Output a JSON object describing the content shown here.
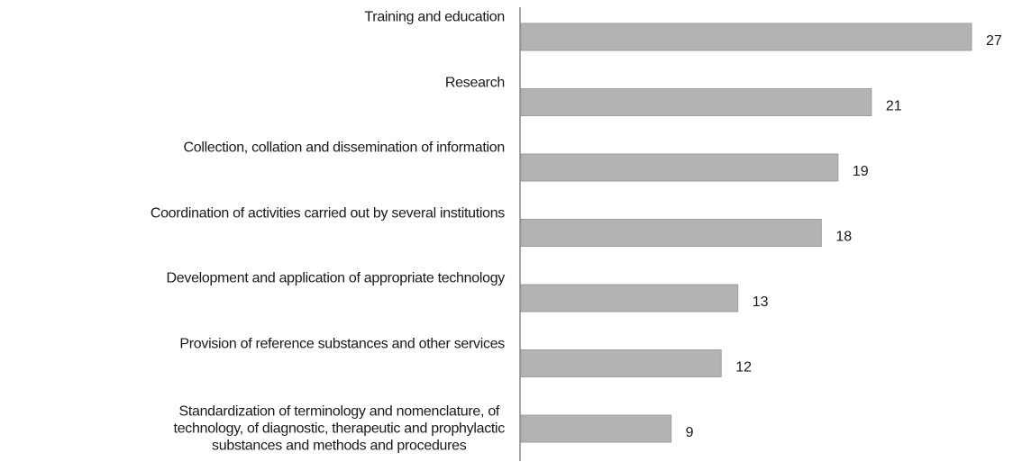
{
  "chart_data": {
    "type": "bar",
    "orientation": "horizontal",
    "categories": [
      "Training and education",
      "Research",
      "Collection, collation and dissemination of information",
      "Coordination of activities carried out by several institutions",
      "Development and application of appropriate technology",
      "Provision of reference substances and other services",
      "Standardization of terminology and nomenclature, of\ntechnology, of diagnostic, therapeutic and prophylactic\nsubstances and methods and procedures"
    ],
    "values": [
      27,
      21,
      19,
      18,
      13,
      12,
      9
    ],
    "color": "#b3b3b3"
  }
}
